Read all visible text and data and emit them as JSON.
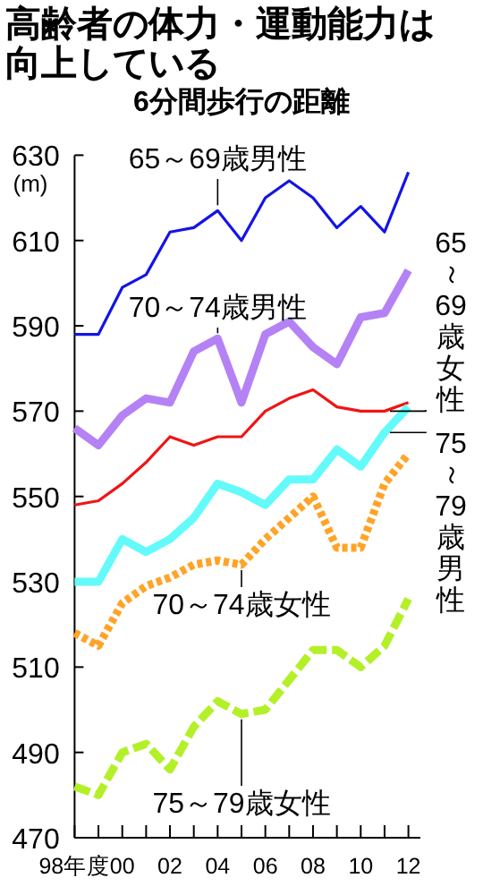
{
  "chart_data": {
    "type": "line",
    "title": "高齢者の体力・運動能力は向上している",
    "subtitle": "6分間歩行の距離",
    "ylabel": "(m)",
    "categories": [
      "98年度",
      null,
      "00",
      null,
      "02",
      null,
      "04",
      null,
      "06",
      null,
      "08",
      null,
      "10",
      null,
      "12"
    ],
    "ylim": [
      470,
      630
    ],
    "yticks": [
      470,
      490,
      510,
      530,
      550,
      570,
      590,
      610,
      630
    ],
    "grid": false,
    "legend": false,
    "marker": "none",
    "series": [
      {
        "name": "65～69歳男性",
        "color": "#1414e6",
        "line_style": "solid",
        "values": [
          588,
          588,
          599,
          602,
          612,
          613,
          617,
          610,
          620,
          624,
          620,
          613,
          618,
          612,
          626
        ]
      },
      {
        "name": "70～74歳男性",
        "color": "#b482f5",
        "line_style": "solid",
        "values": [
          566,
          562,
          569,
          573,
          572,
          584,
          587,
          572,
          588,
          591,
          585,
          581,
          592,
          593,
          603
        ]
      },
      {
        "name": "65～69歳女性",
        "color": "#f01414",
        "line_style": "solid",
        "values": [
          548,
          549,
          553,
          558,
          564,
          562,
          564,
          564,
          570,
          573,
          575,
          571,
          570,
          570,
          572
        ]
      },
      {
        "name": "75～79歳男性",
        "color": "#64fafa",
        "line_style": "solid",
        "values": [
          530,
          530,
          540,
          537,
          540,
          545,
          553,
          551,
          548,
          554,
          554,
          561,
          557,
          565,
          571
        ]
      },
      {
        "name": "70～74歳女性",
        "color": "#ffa428",
        "line_style": "dotted",
        "values": [
          518,
          515,
          525,
          529,
          531,
          534,
          535,
          534,
          540,
          545,
          550,
          538,
          538,
          553,
          560
        ]
      },
      {
        "name": "75～79歳女性",
        "color": "#b4f028",
        "line_style": "dashed",
        "values": [
          482,
          480,
          490,
          492,
          486,
          496,
          502,
          499,
          500,
          507,
          514,
          514,
          510,
          515,
          526
        ]
      }
    ]
  }
}
